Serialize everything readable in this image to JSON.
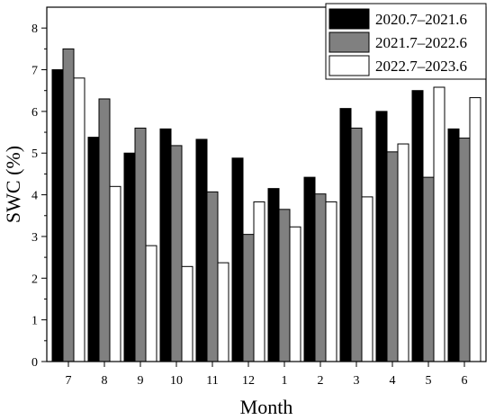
{
  "chart_data": {
    "type": "bar",
    "xlabel": "Month",
    "ylabel": "SWC (%)",
    "ylim": [
      0,
      8.5
    ],
    "yticks": [
      0,
      1,
      2,
      3,
      4,
      5,
      6,
      7,
      8
    ],
    "categories": [
      "7",
      "8",
      "9",
      "10",
      "11",
      "12",
      "1",
      "2",
      "3",
      "4",
      "5",
      "6"
    ],
    "grid": false,
    "legend_position": "top-right",
    "series": [
      {
        "name": "2020.7–2021.6",
        "color": "#000000",
        "values": [
          7.0,
          5.38,
          5.0,
          5.58,
          5.33,
          4.88,
          4.15,
          4.42,
          6.07,
          6.0,
          6.5,
          5.58
        ]
      },
      {
        "name": "2021.7–2022.6",
        "color": "#808080",
        "values": [
          7.5,
          6.3,
          5.6,
          5.18,
          4.07,
          3.05,
          3.65,
          4.02,
          5.6,
          5.03,
          4.42,
          5.36
        ]
      },
      {
        "name": "2022.7–2023.6",
        "color": "#ffffff",
        "values": [
          6.8,
          4.2,
          2.78,
          2.28,
          2.37,
          3.83,
          3.23,
          3.83,
          3.95,
          5.22,
          6.58,
          6.33
        ]
      }
    ]
  }
}
